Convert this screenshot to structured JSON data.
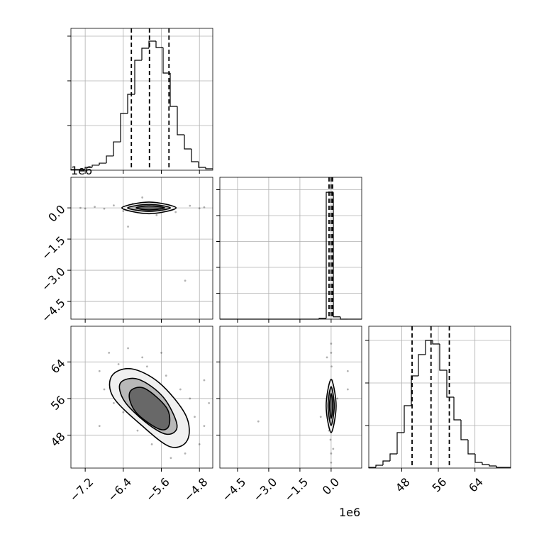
{
  "chart_data": {
    "type": "corner",
    "grid": true,
    "grid_color": "#b0b0b0",
    "point_color": "#000000",
    "contour_fills": [
      "#f0f0f0",
      "#b8b8b8",
      "#686868"
    ],
    "params": [
      {
        "lim": [
          -7.5,
          -4.52
        ],
        "ticks": [
          {
            "value": -7.2,
            "label": "−7.2"
          },
          {
            "value": -6.4,
            "label": "−6.4"
          },
          {
            "value": -5.6,
            "label": "−5.6"
          },
          {
            "value": -4.8,
            "label": "−4.8"
          }
        ]
      },
      {
        "lim": [
          -5.35,
          1.47
        ],
        "ticks": [
          {
            "value": -4.5,
            "label": "−4.5"
          },
          {
            "value": -3.0,
            "label": "−3.0"
          },
          {
            "value": -1.5,
            "label": "−1.5"
          },
          {
            "value": 0,
            "label": "0.0"
          }
        ],
        "offset_label": "1e6"
      },
      {
        "lim": [
          40.8,
          71.8
        ],
        "ticks": [
          48,
          56,
          64
        ]
      }
    ],
    "hists": [
      {
        "bins": [
          -7.5,
          -7.351,
          -7.202,
          -7.053,
          -6.904,
          -6.755,
          -6.606,
          -6.457,
          -6.308,
          -6.159,
          -6.01,
          -5.861,
          -5.712,
          -5.563,
          -5.414,
          -5.265,
          -5.116,
          -4.967,
          -4.818,
          -4.669,
          -4.52
        ],
        "counts": [
          8,
          8,
          32,
          56,
          79,
          159,
          317,
          635,
          849,
          1230,
          1365,
          1444,
          1373,
          1087,
          714,
          397,
          238,
          95,
          32,
          16
        ],
        "ylim": [
          0,
          1587
        ],
        "yticks": [
          500,
          1000,
          1500
        ],
        "quantiles": [
          -6.23,
          -5.85,
          -5.44
        ]
      },
      {
        "bins": [
          -5.35,
          -5.009,
          -4.668,
          -4.327,
          -3.986,
          -3.645,
          -3.304,
          -2.963,
          -2.622,
          -2.281,
          -1.94,
          -1.599,
          -1.258,
          -0.917,
          -0.576,
          -0.235,
          0.106,
          0.447,
          0.788,
          1.129,
          1.47
        ],
        "counts": [
          0,
          0,
          0,
          0,
          0,
          0,
          0,
          0,
          0,
          0,
          0,
          0,
          0,
          0,
          60,
          9800,
          180,
          0,
          0,
          0
        ],
        "ylim": [
          0,
          10959
        ],
        "yticks": [
          2000,
          4000,
          6000,
          8000,
          10000
        ],
        "quantiles": [
          -0.1,
          0.0,
          0.07
        ]
      },
      {
        "bins": [
          40.8,
          42.35,
          43.9,
          45.45,
          47.0,
          48.55,
          50.1,
          51.65,
          53.2,
          54.75,
          56.3,
          57.85,
          59.4,
          60.95,
          62.5,
          64.05,
          65.6,
          67.15,
          68.7,
          70.25,
          71.8
        ],
        "counts": [
          17,
          67,
          167,
          333,
          833,
          1467,
          2167,
          2667,
          3000,
          2917,
          2300,
          1667,
          1133,
          667,
          333,
          133,
          83,
          50,
          17,
          17
        ],
        "ylim": [
          0,
          3333
        ],
        "yticks": [
          1000,
          2000,
          3000
        ],
        "quantiles": [
          50.26,
          54.4,
          58.4
        ]
      }
    ],
    "pairs": [
      {
        "xparam": 0,
        "yparam": 1,
        "points": {
          "x": [
            -7.3,
            -7.0,
            -6.8,
            -6.6,
            -6.4,
            -6.2,
            -6.3,
            -5.0,
            -4.8,
            -4.7,
            -5.3,
            -5.1,
            -6.0,
            -5.7,
            -7.2
          ],
          "y": [
            0,
            0.05,
            -0.04,
            0.12,
            -0.15,
            0.2,
            -0.9,
            0.1,
            -0.02,
            0.03,
            -0.2,
            -3.5,
            0.5,
            -0.35,
            -0.03
          ]
        },
        "contours": [
          {
            "x": [
              -6.43,
              -5.86,
              -5.29,
              -5.86
            ],
            "y": [
              0,
              0.28,
              0,
              -0.28
            ]
          },
          {
            "x": [
              -6.31,
              -5.86,
              -5.41,
              -5.86
            ],
            "y": [
              0,
              0.17,
              0,
              -0.17
            ]
          },
          {
            "x": [
              -6.13,
              -5.86,
              -5.53,
              -5.86
            ],
            "y": [
              0,
              0.1,
              0,
              -0.1
            ]
          }
        ]
      },
      {
        "xparam": 0,
        "yparam": 2,
        "points": {
          "x": [
            -6.9,
            -6.7,
            -6.5,
            -6.8,
            -6.3,
            -6.0,
            -6.6,
            -6.2,
            -5.9,
            -5.5,
            -6.4,
            -5.2,
            -5.0,
            -4.9,
            -4.7,
            -4.8,
            -5.1,
            -5.4,
            -5.8,
            -6.1,
            -4.6,
            -5.3,
            -6.9,
            -5.6,
            -4.7
          ],
          "y": [
            62,
            66,
            63.5,
            58,
            67,
            65,
            55,
            61,
            63,
            61,
            53,
            58,
            56,
            52,
            50,
            46,
            44,
            43,
            46,
            49,
            55,
            48,
            50,
            66,
            60
          ]
        },
        "contours": [
          {
            "x": [
              -6.64,
              -6.23,
              -5.64,
              -5.09,
              -5.05,
              -5.41,
              -6.01,
              -6.61
            ],
            "y": [
              60.95,
              62.5,
              59.4,
              52.4,
              46.97,
              45.45,
              50.1,
              56.3
            ]
          },
          {
            "x": [
              -6.46,
              -6.08,
              -5.56,
              -5.27,
              -5.49,
              -5.94,
              -6.38
            ],
            "y": [
              59.4,
              60.2,
              56.3,
              50.1,
              48.2,
              50.9,
              55.5
            ]
          },
          {
            "x": [
              -6.23,
              -5.94,
              -5.49,
              -5.44,
              -5.64,
              -6.08,
              -6.26
            ],
            "y": [
              57.85,
              58.16,
              53.98,
              50.1,
              49.3,
              52.4,
              55.5
            ]
          }
        ]
      },
      {
        "xparam": 1,
        "yparam": 2,
        "points": {
          "x": [
            0,
            0,
            0,
            0,
            0.02,
            -0.03,
            0.8,
            0.8,
            -0.5,
            -3.5,
            0.3,
            -0.2,
            0.1,
            0.05,
            -0.1
          ],
          "y": [
            66,
            68,
            44,
            42,
            63,
            47,
            62,
            58,
            52,
            51,
            56,
            65,
            45,
            60,
            49
          ]
        },
        "contours": [
          {
            "x": [
              -0.24,
              0,
              0.24,
              0
            ],
            "y": [
              54.4,
              60.2,
              54.4,
              48.55
            ]
          },
          {
            "x": [
              -0.15,
              0,
              0.15,
              0
            ],
            "y": [
              54.4,
              58.6,
              54.4,
              50.1
            ]
          },
          {
            "x": [
              -0.08,
              0,
              0.08,
              0
            ],
            "y": [
              54.4,
              57.1,
              54.4,
              51.65
            ]
          }
        ]
      }
    ]
  }
}
